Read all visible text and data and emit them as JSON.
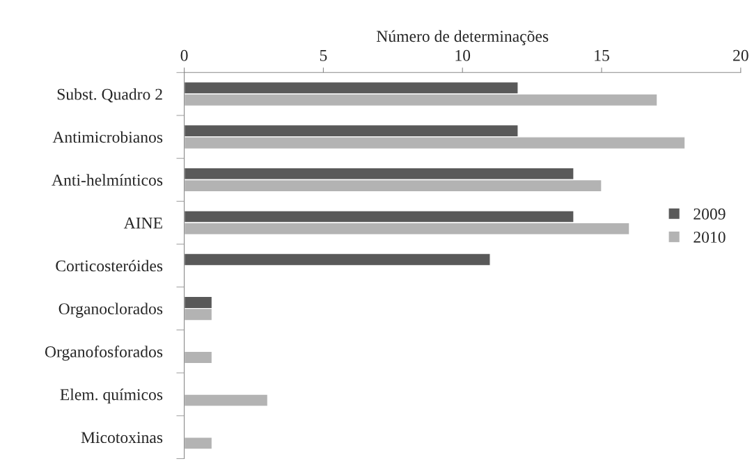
{
  "chart_data": {
    "type": "bar",
    "orientation": "horizontal",
    "xlabel": "Número de determinações",
    "categories": [
      "Subst. Quadro 2",
      "Antimicrobianos",
      "Anti-helmínticos",
      "AINE",
      "Corticosteróides",
      "Organoclorados",
      "Organofosforados",
      "Elem. químicos",
      "Micotoxinas"
    ],
    "series": [
      {
        "name": "2009",
        "color": "#595959",
        "values": [
          12,
          12,
          14,
          14,
          11,
          1,
          null,
          null,
          null
        ]
      },
      {
        "name": "2010",
        "color": "#b3b3b3",
        "values": [
          17,
          18,
          15,
          16,
          null,
          1,
          1,
          3,
          1
        ]
      }
    ],
    "xlim": [
      0,
      20
    ],
    "xticks": [
      0,
      5,
      10,
      15,
      20
    ],
    "grid": false,
    "legend": "right"
  }
}
